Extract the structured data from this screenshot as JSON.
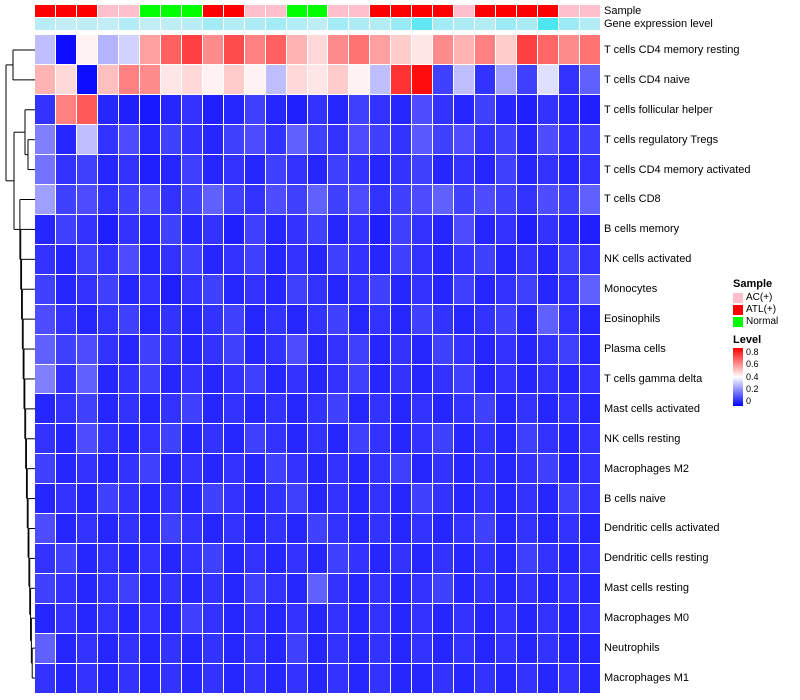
{
  "annotations": {
    "sample_label": "Sample",
    "expression_label": "Gene expression level",
    "sample_colors": {
      "AC(+)": "#FFC0CB",
      "ATL(+)": "#FF0000",
      "Normal": "#00FF00"
    },
    "expression_colors": {
      "low": "#D9EFF6",
      "high": "#00DFF0"
    },
    "sample_by_column": [
      "ATL(+)",
      "ATL(+)",
      "ATL(+)",
      "AC(+)",
      "AC(+)",
      "Normal",
      "Normal",
      "Normal",
      "ATL(+)",
      "ATL(+)",
      "AC(+)",
      "AC(+)",
      "Normal",
      "Normal",
      "AC(+)",
      "AC(+)",
      "ATL(+)",
      "ATL(+)",
      "ATL(+)",
      "ATL(+)",
      "AC(+)",
      "ATL(+)",
      "ATL(+)",
      "ATL(+)",
      "ATL(+)",
      "AC(+)",
      "AC(+)"
    ],
    "expression_by_column": [
      0.15,
      0.1,
      0.12,
      0.1,
      0.18,
      0.1,
      0.12,
      0.15,
      0.25,
      0.18,
      0.2,
      0.25,
      0.18,
      0.12,
      0.25,
      0.2,
      0.18,
      0.3,
      0.55,
      0.25,
      0.2,
      0.18,
      0.28,
      0.22,
      0.65,
      0.28,
      0.18
    ]
  },
  "chart_data": {
    "type": "heatmap",
    "title": "",
    "rows": [
      "T cells CD4 memory resting",
      "T cells CD4 naive",
      "T cells follicular helper",
      "T cells regulatory Tregs",
      "T cells CD4 memory activated",
      "T cells CD8",
      "B cells memory",
      "NK cells activated",
      "Monocytes",
      "Eosinophils",
      "Plasma cells",
      "T cells gamma delta",
      "Mast cells activated",
      "NK cells resting",
      "Macrophages M2",
      "B cells naive",
      "Dendritic cells activated",
      "Dendritic cells resting",
      "Mast cells resting",
      "Macrophages M0",
      "Neutrophils",
      "Macrophages M1"
    ],
    "columns_count": 27,
    "value_domain": [
      0,
      0.8
    ],
    "colormap": {
      "low": "#0000FF",
      "mid": "#FFFFFF",
      "high": "#FF0000",
      "mid_at": 0.4
    },
    "row_dendrogram": true,
    "values": [
      [
        0.3,
        0.02,
        0.42,
        0.28,
        0.33,
        0.55,
        0.65,
        0.7,
        0.58,
        0.68,
        0.6,
        0.65,
        0.52,
        0.46,
        0.58,
        0.62,
        0.55,
        0.48,
        0.44,
        0.58,
        0.52,
        0.6,
        0.48,
        0.7,
        0.64,
        0.58,
        0.62
      ],
      [
        0.52,
        0.46,
        0.02,
        0.5,
        0.6,
        0.58,
        0.44,
        0.46,
        0.42,
        0.48,
        0.42,
        0.3,
        0.46,
        0.44,
        0.48,
        0.42,
        0.3,
        0.72,
        0.78,
        0.1,
        0.3,
        0.08,
        0.25,
        0.1,
        0.35,
        0.08,
        0.15
      ],
      [
        0.08,
        0.6,
        0.66,
        0.06,
        0.05,
        0.04,
        0.06,
        0.08,
        0.05,
        0.06,
        0.1,
        0.06,
        0.05,
        0.08,
        0.06,
        0.1,
        0.08,
        0.06,
        0.12,
        0.08,
        0.06,
        0.1,
        0.06,
        0.05,
        0.08,
        0.06,
        0.05
      ],
      [
        0.2,
        0.06,
        0.3,
        0.08,
        0.12,
        0.06,
        0.1,
        0.08,
        0.06,
        0.1,
        0.12,
        0.08,
        0.15,
        0.1,
        0.08,
        0.12,
        0.1,
        0.08,
        0.14,
        0.1,
        0.12,
        0.08,
        0.1,
        0.06,
        0.12,
        0.08,
        0.1
      ],
      [
        0.18,
        0.08,
        0.1,
        0.06,
        0.08,
        0.05,
        0.06,
        0.1,
        0.06,
        0.08,
        0.06,
        0.1,
        0.08,
        0.06,
        0.1,
        0.08,
        0.06,
        0.08,
        0.1,
        0.06,
        0.08,
        0.06,
        0.1,
        0.06,
        0.08,
        0.06,
        0.08
      ],
      [
        0.25,
        0.1,
        0.12,
        0.08,
        0.1,
        0.12,
        0.08,
        0.1,
        0.15,
        0.1,
        0.08,
        0.12,
        0.1,
        0.15,
        0.1,
        0.12,
        0.08,
        0.1,
        0.12,
        0.15,
        0.1,
        0.12,
        0.1,
        0.08,
        0.12,
        0.1,
        0.15
      ],
      [
        0.06,
        0.1,
        0.08,
        0.05,
        0.08,
        0.06,
        0.1,
        0.06,
        0.08,
        0.05,
        0.1,
        0.06,
        0.08,
        0.1,
        0.06,
        0.08,
        0.05,
        0.1,
        0.08,
        0.06,
        0.12,
        0.06,
        0.08,
        0.05,
        0.08,
        0.06,
        0.05
      ],
      [
        0.08,
        0.06,
        0.1,
        0.08,
        0.12,
        0.06,
        0.08,
        0.1,
        0.06,
        0.08,
        0.1,
        0.06,
        0.08,
        0.06,
        0.1,
        0.08,
        0.06,
        0.1,
        0.08,
        0.06,
        0.08,
        0.1,
        0.06,
        0.08,
        0.06,
        0.1,
        0.08
      ],
      [
        0.1,
        0.06,
        0.08,
        0.1,
        0.06,
        0.08,
        0.05,
        0.08,
        0.1,
        0.06,
        0.08,
        0.06,
        0.1,
        0.08,
        0.06,
        0.08,
        0.1,
        0.06,
        0.08,
        0.06,
        0.1,
        0.06,
        0.08,
        0.1,
        0.06,
        0.08,
        0.15
      ],
      [
        0.12,
        0.08,
        0.06,
        0.08,
        0.1,
        0.06,
        0.08,
        0.06,
        0.08,
        0.1,
        0.06,
        0.08,
        0.06,
        0.08,
        0.1,
        0.06,
        0.08,
        0.06,
        0.1,
        0.08,
        0.06,
        0.08,
        0.1,
        0.06,
        0.15,
        0.08,
        0.06
      ],
      [
        0.15,
        0.1,
        0.12,
        0.08,
        0.06,
        0.1,
        0.08,
        0.06,
        0.08,
        0.1,
        0.06,
        0.08,
        0.12,
        0.06,
        0.08,
        0.1,
        0.06,
        0.08,
        0.06,
        0.1,
        0.08,
        0.06,
        0.08,
        0.06,
        0.08,
        0.1,
        0.06
      ],
      [
        0.2,
        0.08,
        0.15,
        0.06,
        0.08,
        0.1,
        0.06,
        0.08,
        0.06,
        0.08,
        0.1,
        0.06,
        0.08,
        0.06,
        0.08,
        0.1,
        0.06,
        0.08,
        0.06,
        0.08,
        0.1,
        0.06,
        0.08,
        0.06,
        0.08,
        0.06,
        0.08
      ],
      [
        0.06,
        0.08,
        0.1,
        0.06,
        0.08,
        0.06,
        0.08,
        0.1,
        0.06,
        0.08,
        0.06,
        0.08,
        0.06,
        0.08,
        0.1,
        0.06,
        0.08,
        0.06,
        0.08,
        0.06,
        0.08,
        0.1,
        0.06,
        0.08,
        0.06,
        0.08,
        0.06
      ],
      [
        0.08,
        0.06,
        0.12,
        0.08,
        0.06,
        0.08,
        0.1,
        0.06,
        0.08,
        0.06,
        0.1,
        0.08,
        0.06,
        0.08,
        0.06,
        0.1,
        0.08,
        0.06,
        0.08,
        0.1,
        0.06,
        0.08,
        0.06,
        0.1,
        0.08,
        0.06,
        0.08
      ],
      [
        0.1,
        0.06,
        0.08,
        0.06,
        0.08,
        0.1,
        0.06,
        0.08,
        0.06,
        0.08,
        0.06,
        0.1,
        0.08,
        0.06,
        0.08,
        0.06,
        0.08,
        0.1,
        0.06,
        0.08,
        0.06,
        0.08,
        0.06,
        0.08,
        0.1,
        0.06,
        0.08
      ],
      [
        0.06,
        0.08,
        0.06,
        0.1,
        0.08,
        0.06,
        0.08,
        0.06,
        0.1,
        0.08,
        0.06,
        0.08,
        0.1,
        0.06,
        0.08,
        0.06,
        0.08,
        0.06,
        0.1,
        0.08,
        0.06,
        0.08,
        0.06,
        0.08,
        0.06,
        0.1,
        0.08
      ],
      [
        0.12,
        0.06,
        0.08,
        0.06,
        0.08,
        0.06,
        0.1,
        0.08,
        0.06,
        0.08,
        0.06,
        0.08,
        0.06,
        0.1,
        0.08,
        0.06,
        0.08,
        0.06,
        0.08,
        0.06,
        0.08,
        0.1,
        0.06,
        0.08,
        0.06,
        0.08,
        0.06
      ],
      [
        0.08,
        0.1,
        0.06,
        0.08,
        0.06,
        0.08,
        0.06,
        0.08,
        0.1,
        0.06,
        0.08,
        0.06,
        0.08,
        0.06,
        0.1,
        0.08,
        0.06,
        0.08,
        0.06,
        0.08,
        0.06,
        0.08,
        0.06,
        0.1,
        0.08,
        0.06,
        0.08
      ],
      [
        0.1,
        0.08,
        0.06,
        0.08,
        0.1,
        0.06,
        0.08,
        0.06,
        0.08,
        0.06,
        0.1,
        0.08,
        0.06,
        0.15,
        0.08,
        0.06,
        0.08,
        0.06,
        0.08,
        0.1,
        0.06,
        0.08,
        0.06,
        0.08,
        0.06,
        0.08,
        0.06
      ],
      [
        0.06,
        0.08,
        0.06,
        0.08,
        0.06,
        0.08,
        0.06,
        0.1,
        0.08,
        0.06,
        0.08,
        0.06,
        0.08,
        0.06,
        0.08,
        0.06,
        0.08,
        0.06,
        0.08,
        0.06,
        0.08,
        0.06,
        0.08,
        0.06,
        0.08,
        0.06,
        0.08
      ],
      [
        0.15,
        0.06,
        0.08,
        0.06,
        0.08,
        0.06,
        0.08,
        0.06,
        0.08,
        0.06,
        0.08,
        0.06,
        0.1,
        0.06,
        0.08,
        0.06,
        0.08,
        0.06,
        0.08,
        0.06,
        0.08,
        0.06,
        0.08,
        0.06,
        0.08,
        0.06,
        0.06
      ],
      [
        0.08,
        0.06,
        0.08,
        0.06,
        0.08,
        0.06,
        0.08,
        0.06,
        0.08,
        0.06,
        0.08,
        0.06,
        0.08,
        0.06,
        0.08,
        0.06,
        0.08,
        0.06,
        0.06,
        0.08,
        0.06,
        0.08,
        0.06,
        0.08,
        0.06,
        0.08,
        0.06
      ]
    ]
  },
  "legend": {
    "sample": {
      "title": "Sample",
      "items": [
        {
          "label": "AC(+)",
          "color": "#FFC0CB"
        },
        {
          "label": "ATL(+)",
          "color": "#FF0000"
        },
        {
          "label": "Normal",
          "color": "#00FF00"
        }
      ]
    },
    "level": {
      "title": "Level",
      "ticks": [
        "0.8",
        "0.6",
        "0.4",
        "0.2",
        "0"
      ],
      "top_color": "#FF0000",
      "mid_color": "#FFFFFF",
      "bottom_color": "#0000FF"
    }
  }
}
